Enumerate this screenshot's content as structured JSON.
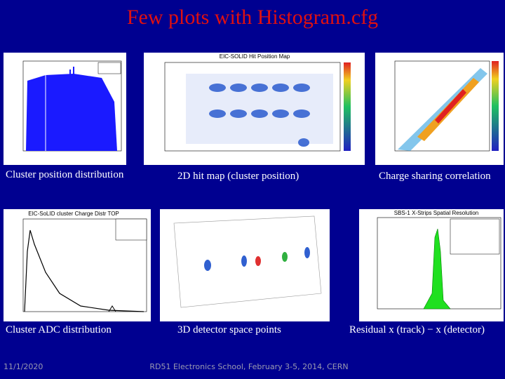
{
  "header": {
    "title": "Few plots with Histogram.cfg"
  },
  "panels": [
    {
      "caption": "Cluster position distribution"
    },
    {
      "plot_title": "EIC-SOLID Hit Position Map",
      "caption": "2D hit map (cluster position)"
    },
    {
      "caption": "Charge sharing correlation"
    },
    {
      "plot_title": "EIC-SoLID cluster Charge Distr TOP",
      "caption": "Cluster ADC distribution"
    },
    {
      "caption": "3D detector space points"
    },
    {
      "plot_title": "SBS-1 X-Strips Spatial Resolution",
      "caption": "Residual x (track) − x (detector)"
    }
  ],
  "footer": {
    "date": "11/1/2020",
    "text": "RD51 Electronics School, February 3-5, 2014, CERN"
  }
}
